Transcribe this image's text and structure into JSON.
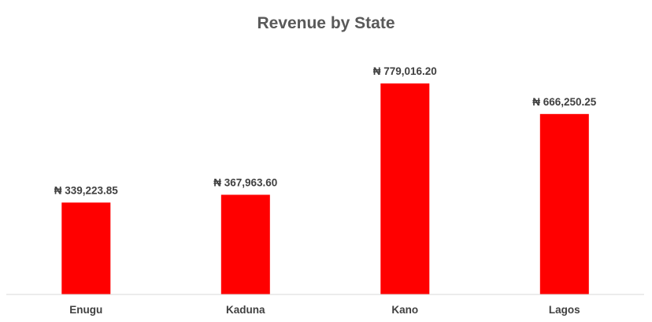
{
  "chart_data": {
    "type": "bar",
    "title": "Revenue by State",
    "xlabel": "",
    "ylabel": "",
    "categories": [
      "Enugu",
      "Kaduna",
      "Kano",
      "Lagos"
    ],
    "values": [
      339223.85,
      367963.6,
      779016.2,
      666250.25
    ],
    "data_labels": [
      "₦ 339,223.85",
      "₦ 367,963.60",
      "₦ 779,016.20",
      "₦ 666,250.25"
    ],
    "bar_color": "#FF0000",
    "ylim": [
      0,
      850000
    ],
    "grid": false,
    "legend": "none"
  }
}
